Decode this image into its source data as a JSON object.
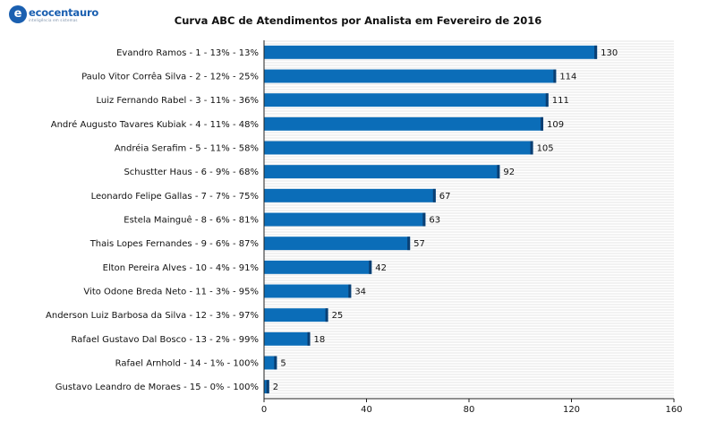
{
  "logo": {
    "mark": "e",
    "name": "ecocentauro",
    "tagline": "inteligência em sistemas"
  },
  "colors": {
    "bar": "#0b6db8",
    "bar_edge": "#0a3f73",
    "stripe": "#e6e6e6"
  },
  "chart_data": {
    "type": "bar",
    "orientation": "horizontal",
    "title": "Curva ABC de Atendimentos por Analista em Fevereiro de 2016",
    "xlabel": "",
    "ylabel": "",
    "xlim": [
      0,
      160
    ],
    "xticks": [
      "0",
      "40",
      "80",
      "120",
      "160"
    ],
    "grid": "horizontal stripes",
    "categories": [
      "Evandro Ramos  -  1  -  13%  -  13%",
      "Paulo Vitor Corrêa Silva  -  2  -  12%  -  25%",
      "Luiz Fernando Rabel  -  3  -  11%  -  36%",
      "André Augusto Tavares Kubiak  -  4  -  11%  -  48%",
      "Andréia Serafim  -  5  -  11%  -  58%",
      "Schustter Haus  -  6  -  9%  -  68%",
      "Leonardo Felipe Gallas  -  7  -  7%  -  75%",
      "Estela Mainguê  -  8  -  6%  -  81%",
      "Thais Lopes Fernandes  -  9  -  6%  -  87%",
      "Elton Pereira Alves  -  10  -  4%  -  91%",
      "Vito Odone Breda Neto  -  11  -  3%  -  95%",
      "Anderson Luiz Barbosa da Silva  -  12  -  3%  -  97%",
      "Rafael Gustavo Dal Bosco  -  13  -  2%  -  99%",
      "Rafael Arnhold  -  14  -  1%  -  100%",
      "Gustavo Leandro de Moraes  -  15  -  0%  -  100%"
    ],
    "values": [
      130,
      114,
      111,
      109,
      105,
      92,
      67,
      63,
      57,
      42,
      34,
      25,
      18,
      5,
      2
    ]
  }
}
